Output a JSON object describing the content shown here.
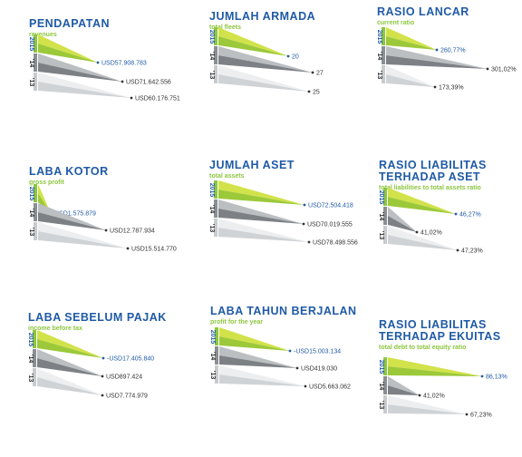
{
  "colors": {
    "title": "#1f5aa6",
    "subtitle": "#8cc63f",
    "year_2015_bar": "#8cc63f",
    "year_2014_bar": "#8a8f94",
    "year_2013_bar": "#c8cbce",
    "tri_2015_light": "#d2e24a",
    "tri_2015_dark": "#9cc93a",
    "tri_2014_light": "#bcbfc2",
    "tri_2014_dark": "#7d8186",
    "tri_2013_light": "#eceeef",
    "tri_2013_dark": "#d0d3d6",
    "value_2015": "#1f5aa6",
    "value_other": "#333333"
  },
  "chart_data": [
    {
      "type": "bar",
      "title": "PENDAPATAN",
      "subtitle": "revenues",
      "categories": [
        "2015",
        "'14",
        "'13"
      ],
      "values": [
        57908783,
        71642556,
        60176751
      ],
      "labels": [
        "USD57.908.783",
        "USD71.642.556",
        "USD60.176.751"
      ]
    },
    {
      "type": "bar",
      "title": "JUMLAH ARMADA",
      "subtitle": "total fleets",
      "categories": [
        "2015",
        "'14",
        "'13"
      ],
      "values": [
        20,
        27,
        25
      ],
      "labels": [
        "20",
        "27",
        "25"
      ]
    },
    {
      "type": "bar",
      "title": "RASIO LANCAR",
      "subtitle": "current ratio",
      "categories": [
        "2015",
        "'14",
        "'13"
      ],
      "values": [
        260.77,
        301.02,
        173.39
      ],
      "labels": [
        "260,77%",
        "301,02%",
        "173,39%"
      ]
    },
    {
      "type": "bar",
      "title": "LABA KOTOR",
      "subtitle": "gross profit",
      "categories": [
        "2015",
        "'14",
        "'13"
      ],
      "values": [
        1575879,
        12787934,
        15514770
      ],
      "labels": [
        "USD1.575.879",
        "USD12.787.934",
        "USD15.514.770"
      ]
    },
    {
      "type": "bar",
      "title": "JUMLAH ASET",
      "subtitle": "total assets",
      "categories": [
        "2015",
        "'14",
        "'13"
      ],
      "values": [
        72504418,
        70019555,
        78498556
      ],
      "labels": [
        "USD72.504.418",
        "USD70.019.555",
        "USD78.498.556"
      ]
    },
    {
      "type": "bar",
      "title": "RASIO LIABILITAS TERHADAP ASET",
      "subtitle": "total liabilities to total assets ratio",
      "categories": [
        "2015",
        "'14",
        "'13"
      ],
      "values": [
        46.27,
        41.02,
        47.23
      ],
      "labels": [
        "46,27%",
        "41,02%",
        "47,23%"
      ]
    },
    {
      "type": "bar",
      "title": "LABA SEBELUM PAJAK",
      "subtitle": "income before tax",
      "categories": [
        "2015",
        "'14",
        "'13"
      ],
      "values": [
        -17405840,
        897424,
        7774979
      ],
      "labels": [
        "-USD17.405.840",
        "USD897.424",
        "USD7.774.979"
      ]
    },
    {
      "type": "bar",
      "title": "LABA TAHUN BERJALAN",
      "subtitle": "profit for the year",
      "categories": [
        "2015",
        "'14",
        "'13"
      ],
      "values": [
        -15003134,
        419030,
        5663062
      ],
      "labels": [
        "-USD15.003.134",
        "USD419.030",
        "USD5.663.062"
      ]
    },
    {
      "type": "bar",
      "title": "RASIO LIABILITAS TERHADAP EKUITAS",
      "subtitle": "total debt to total equity ratio",
      "categories": [
        "2015",
        "'14",
        "'13"
      ],
      "values": [
        86.13,
        41.02,
        67.23
      ],
      "labels": [
        "86,13%",
        "41,02%",
        "67,23%"
      ]
    }
  ]
}
